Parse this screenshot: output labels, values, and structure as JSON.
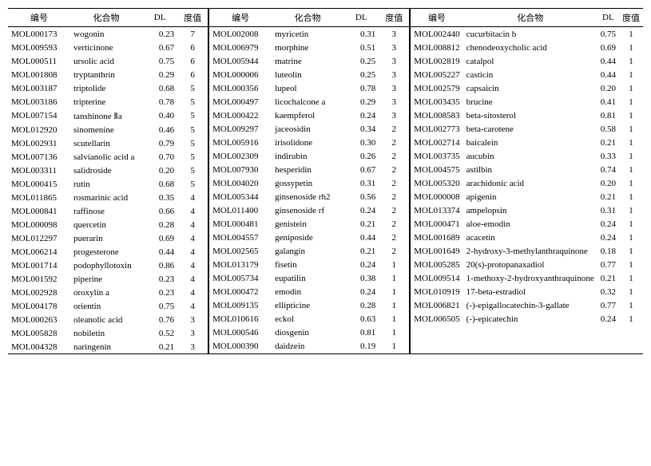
{
  "headers": {
    "id": "编号",
    "name": "化合物",
    "dl": "DL",
    "freq": "度值"
  },
  "columns": [
    [
      {
        "id": "MOL000173",
        "name": "wogonin",
        "dl": "0.23",
        "freq": "7"
      },
      {
        "id": "MOL009593",
        "name": "verticinone",
        "dl": "0.67",
        "freq": "6"
      },
      {
        "id": "MOL000511",
        "name": "ursolic acid",
        "dl": "0.75",
        "freq": "6"
      },
      {
        "id": "MOL001808",
        "name": "tryptanthrin",
        "dl": "0.29",
        "freq": "6"
      },
      {
        "id": "MOL003187",
        "name": "triptolide",
        "dl": "0.68",
        "freq": "5"
      },
      {
        "id": "MOL003186",
        "name": "tripterine",
        "dl": "0.78",
        "freq": "5"
      },
      {
        "id": "MOL007154",
        "name": "tanshinone Ⅱa",
        "dl": "0.40",
        "freq": "5"
      },
      {
        "id": "MOL012920",
        "name": "sinomenine",
        "dl": "0.46",
        "freq": "5"
      },
      {
        "id": "MOL002931",
        "name": "scutellarin",
        "dl": "0.79",
        "freq": "5"
      },
      {
        "id": "MOL007136",
        "name": "salvianolic acid a",
        "dl": "0.70",
        "freq": "5"
      },
      {
        "id": "MOL003311",
        "name": "salidroside",
        "dl": "0.20",
        "freq": "5"
      },
      {
        "id": "MOL000415",
        "name": "rutin",
        "dl": "0.68",
        "freq": "5"
      },
      {
        "id": "MOL011865",
        "name": "rosmarinic acid",
        "dl": "0.35",
        "freq": "4"
      },
      {
        "id": "MOL000841",
        "name": "raffinose",
        "dl": "0.66",
        "freq": "4"
      },
      {
        "id": "MOL000098",
        "name": "quercetin",
        "dl": "0.28",
        "freq": "4"
      },
      {
        "id": "MOL012297",
        "name": "puerarin",
        "dl": "0.69",
        "freq": "4"
      },
      {
        "id": "MOL006214",
        "name": "progesterone",
        "dl": "0.44",
        "freq": "4"
      },
      {
        "id": "MOL001714",
        "name": "podophyllotoxin",
        "dl": "0.86",
        "freq": "4"
      },
      {
        "id": "MOL001592",
        "name": "piperine",
        "dl": "0.23",
        "freq": "4"
      },
      {
        "id": "MOL002928",
        "name": "oroxylin a",
        "dl": "0.23",
        "freq": "4"
      },
      {
        "id": "MOL004178",
        "name": "orientin",
        "dl": "0.75",
        "freq": "4"
      },
      {
        "id": "MOL000263",
        "name": "oleanolic acid",
        "dl": "0.76",
        "freq": "3"
      },
      {
        "id": "MOL005828",
        "name": "nobiletin",
        "dl": "0.52",
        "freq": "3"
      },
      {
        "id": "MOL004328",
        "name": "naringenin",
        "dl": "0.21",
        "freq": "3"
      }
    ],
    [
      {
        "id": "MOL002008",
        "name": "myricetin",
        "dl": "0.31",
        "freq": "3"
      },
      {
        "id": "MOL006979",
        "name": "morphine",
        "dl": "0.51",
        "freq": "3"
      },
      {
        "id": "MOL005944",
        "name": "matrine",
        "dl": "0.25",
        "freq": "3"
      },
      {
        "id": "MOL000006",
        "name": "luteolin",
        "dl": "0.25",
        "freq": "3"
      },
      {
        "id": "MOL000356",
        "name": "lupeol",
        "dl": "0.78",
        "freq": "3"
      },
      {
        "id": "MOL000497",
        "name": "licochalcone a",
        "dl": "0.29",
        "freq": "3"
      },
      {
        "id": "MOL000422",
        "name": "kaempferol",
        "dl": "0.24",
        "freq": "3"
      },
      {
        "id": "MOL009297",
        "name": "jaceosidin",
        "dl": "0.34",
        "freq": "2"
      },
      {
        "id": "MOL005916",
        "name": "irisolidone",
        "dl": "0.30",
        "freq": "2"
      },
      {
        "id": "MOL002309",
        "name": "indirubin",
        "dl": "0.26",
        "freq": "2"
      },
      {
        "id": "MOL007930",
        "name": "hesperidin",
        "dl": "0.67",
        "freq": "2"
      },
      {
        "id": "MOL004020",
        "name": "gossypetin",
        "dl": "0.31",
        "freq": "2"
      },
      {
        "id": "MOL005344",
        "name": "ginsenoside rh2",
        "dl": "0.56",
        "freq": "2"
      },
      {
        "id": "MOL011400",
        "name": "ginsenoside rf",
        "dl": "0.24",
        "freq": "2"
      },
      {
        "id": "MOL000481",
        "name": "genistein",
        "dl": "0.21",
        "freq": "2"
      },
      {
        "id": "MOL004557",
        "name": "geniposide",
        "dl": "0.44",
        "freq": "2"
      },
      {
        "id": "MOL002565",
        "name": "galangin",
        "dl": "0.21",
        "freq": "2"
      },
      {
        "id": "MOL013179",
        "name": "fisetin",
        "dl": "0.24",
        "freq": "1"
      },
      {
        "id": "MOL005734",
        "name": "eupatilin",
        "dl": "0.38",
        "freq": "1"
      },
      {
        "id": "MOL000472",
        "name": "emodin",
        "dl": "0.24",
        "freq": "1"
      },
      {
        "id": "MOL009135",
        "name": "ellipticine",
        "dl": "0.28",
        "freq": "1"
      },
      {
        "id": "MOL010616",
        "name": "eckol",
        "dl": "0.63",
        "freq": "1"
      },
      {
        "id": "MOL000546",
        "name": "diosgenin",
        "dl": "0.81",
        "freq": "1"
      },
      {
        "id": "MOL000390",
        "name": "daidzein",
        "dl": "0.19",
        "freq": "1"
      }
    ],
    [
      {
        "id": "MOL002440",
        "name": "cucurbitacin b",
        "dl": "0.75",
        "freq": "1"
      },
      {
        "id": "MOL008812",
        "name": "chenodeoxycholic acid",
        "dl": "0.69",
        "freq": "1"
      },
      {
        "id": "MOL002819",
        "name": "catalpol",
        "dl": "0.44",
        "freq": "1"
      },
      {
        "id": "MOL005227",
        "name": "casticin",
        "dl": "0.44",
        "freq": "1"
      },
      {
        "id": "MOL002579",
        "name": "capsaicin",
        "dl": "0.20",
        "freq": "1"
      },
      {
        "id": "MOL003435",
        "name": "brucine",
        "dl": "0.41",
        "freq": "1"
      },
      {
        "id": "MOL008583",
        "name": "beta-sitosterol",
        "dl": "0.81",
        "freq": "1"
      },
      {
        "id": "MOL002773",
        "name": "beta-carotene",
        "dl": "0.58",
        "freq": "1"
      },
      {
        "id": "MOL002714",
        "name": "baicalein",
        "dl": "0.21",
        "freq": "1"
      },
      {
        "id": "MOL003735",
        "name": "aucubin",
        "dl": "0.33",
        "freq": "1"
      },
      {
        "id": "MOL004575",
        "name": "astilbin",
        "dl": "0.74",
        "freq": "1"
      },
      {
        "id": "MOL005320",
        "name": "arachidonic acid",
        "dl": "0.20",
        "freq": "1"
      },
      {
        "id": "MOL000008",
        "name": "apigenin",
        "dl": "0.21",
        "freq": "1"
      },
      {
        "id": "MOL013374",
        "name": "ampelopsin",
        "dl": "0.31",
        "freq": "1"
      },
      {
        "id": "MOL000471",
        "name": "aloe-emodin",
        "dl": "0.24",
        "freq": "1"
      },
      {
        "id": "MOL001689",
        "name": "acacetin",
        "dl": "0.24",
        "freq": "1"
      },
      {
        "id": "MOL001649",
        "name": "2-hydroxy-3-methylanthraquinone",
        "dl": "0.18",
        "freq": "1"
      },
      {
        "id": "MOL005285",
        "name": "20(s)-protopanaxadiol",
        "dl": "0.77",
        "freq": "1"
      },
      {
        "id": "MOL009514",
        "name": "1-methoxy-2-hydroxyanthraquinone",
        "dl": "0.21",
        "freq": "1"
      },
      {
        "id": "MOL010919",
        "name": "17-beta-estradiol",
        "dl": "0.32",
        "freq": "1"
      },
      {
        "id": "MOL006821",
        "name": "(-)-epigallocatechin-3-gallate",
        "dl": "0.77",
        "freq": "1"
      },
      {
        "id": "MOL006505",
        "name": "(-)-epicatechin",
        "dl": "0.24",
        "freq": "1"
      }
    ]
  ]
}
